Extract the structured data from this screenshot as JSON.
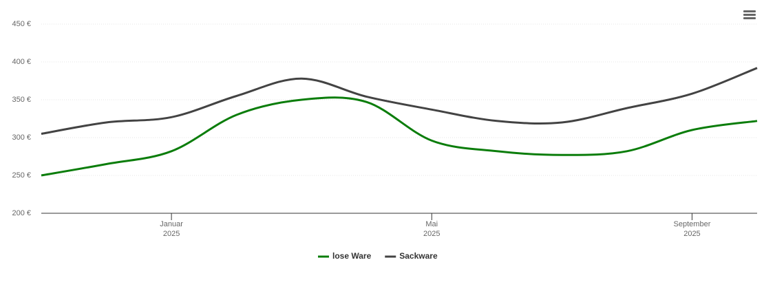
{
  "chart_data": {
    "type": "line",
    "x": [
      "2024-11",
      "2024-12",
      "2025-01",
      "2025-02",
      "2025-03",
      "2025-04",
      "2025-05",
      "2025-06",
      "2025-07",
      "2025-08",
      "2025-09",
      "2025-10"
    ],
    "series": [
      {
        "name": "lose Ware",
        "color": "#0b7d0b",
        "values": [
          250,
          265,
          282,
          330,
          350,
          347,
          296,
          282,
          277,
          282,
          310,
          322
        ]
      },
      {
        "name": "Sackware",
        "color": "#434343",
        "values": [
          305,
          320,
          327,
          355,
          378,
          354,
          337,
          322,
          320,
          339,
          358,
          392
        ]
      }
    ],
    "xlim": [
      "2024-11",
      "2025-10"
    ],
    "xticks": [
      {
        "value": "2025-01",
        "label": "Januar 2025"
      },
      {
        "value": "2025-05",
        "label": "Mai 2025"
      },
      {
        "value": "2025-09",
        "label": "September 2025"
      }
    ],
    "ylim": [
      200,
      450
    ],
    "yticks": [
      {
        "value": 200,
        "label": "200 €"
      },
      {
        "value": 250,
        "label": "250 €"
      },
      {
        "value": 300,
        "label": "300 €"
      },
      {
        "value": 350,
        "label": "350 €"
      },
      {
        "value": 400,
        "label": "400 €"
      },
      {
        "value": 450,
        "label": "450 €"
      }
    ],
    "grid": true,
    "legend": "bottom"
  }
}
